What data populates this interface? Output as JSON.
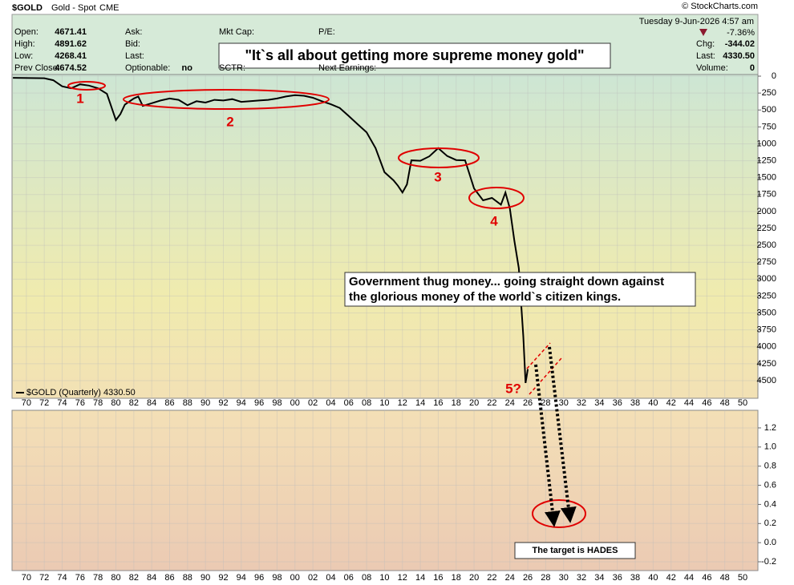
{
  "header": {
    "symbol": "$GOLD",
    "name": "Gold - Spot",
    "exchange": "CME",
    "date": "Tuesday  9-Jun-2026  4:57 am",
    "copyright": "© StockCharts.com",
    "fields_left": [
      [
        "Open:",
        "4671.41"
      ],
      [
        "High:",
        "4891.62"
      ],
      [
        "Low:",
        "4268.41"
      ],
      [
        "Prev Close:",
        "4674.52"
      ]
    ],
    "fields_mid": [
      [
        "Ask:",
        ""
      ],
      [
        "Bid:",
        ""
      ],
      [
        "Last:",
        ""
      ],
      [
        "Optionable:",
        "no"
      ]
    ],
    "fields_3": [
      "Mkt Cap:",
      "SCTR:"
    ],
    "fields_4": [
      "P/E:",
      "Next Earnings:"
    ],
    "change_pct": "-7.36%",
    "fields_right": [
      [
        "Chg:",
        "-344.02"
      ],
      [
        "Last:",
        "4330.50"
      ],
      [
        "Volume:",
        "0"
      ]
    ]
  },
  "annotations": {
    "title": "\"It`s all about getting more supreme money gold\"",
    "government": [
      "Government thug money... going straight down against",
      "the glorious money of the world`s citizen kings."
    ],
    "target": "The target is HADES",
    "labels": [
      "1",
      "2",
      "3",
      "4",
      "5?"
    ]
  },
  "chart_data": [
    {
      "type": "line",
      "y_inverted": true,
      "grid": true,
      "x": [
        1968.5,
        1972,
        1973,
        1974,
        1975,
        1976,
        1977,
        1978,
        1979,
        1980,
        1980.5,
        1981,
        1982,
        1982.5,
        1983,
        1984,
        1985,
        1986,
        1987,
        1988,
        1989,
        1990,
        1991,
        1992,
        1993,
        1994,
        1995,
        1996,
        1997,
        1998,
        1999,
        2000,
        2001,
        2002,
        2003,
        2004,
        2005,
        2006,
        2007,
        2008,
        2009,
        2010,
        2011,
        2011.5,
        2012,
        2012.5,
        2013,
        2014,
        2015,
        2016,
        2017,
        2018,
        2019,
        2020,
        2021,
        2022,
        2023,
        2023.5,
        2024,
        2024.5,
        2025,
        2025.5,
        2025.75,
        2026
      ],
      "series": [
        {
          "name": "$GOLD (Quarterly) 4330.50",
          "color": "#000000",
          "values": [
            25,
            30,
            60,
            150,
            180,
            120,
            140,
            180,
            260,
            650,
            560,
            420,
            330,
            300,
            440,
            400,
            360,
            330,
            350,
            430,
            370,
            390,
            350,
            360,
            340,
            380,
            370,
            360,
            350,
            330,
            300,
            280,
            290,
            320,
            370,
            415,
            470,
            590,
            710,
            830,
            1065,
            1420,
            1540,
            1620,
            1720,
            1600,
            1245,
            1250,
            1185,
            1065,
            1180,
            1240,
            1245,
            1660,
            1835,
            1800,
            1900,
            1720,
            1955,
            2430,
            2840,
            3850,
            4535,
            4330
          ]
        }
      ],
      "xlim": [
        1968.4,
        2051.7
      ],
      "xticks": [
        {
          "value": 1970,
          "label": "70"
        },
        {
          "value": 1972,
          "label": "72"
        },
        {
          "value": 1974,
          "label": "74"
        },
        {
          "value": 1976,
          "label": "76"
        },
        {
          "value": 1978,
          "label": "78"
        },
        {
          "value": 1980,
          "label": "80"
        },
        {
          "value": 1982,
          "label": "82"
        },
        {
          "value": 1984,
          "label": "84"
        },
        {
          "value": 1986,
          "label": "86"
        },
        {
          "value": 1988,
          "label": "88"
        },
        {
          "value": 1990,
          "label": "90"
        },
        {
          "value": 1992,
          "label": "92"
        },
        {
          "value": 1994,
          "label": "94"
        },
        {
          "value": 1996,
          "label": "96"
        },
        {
          "value": 1998,
          "label": "98"
        },
        {
          "value": 2000,
          "label": "00"
        },
        {
          "value": 2002,
          "label": "02"
        },
        {
          "value": 2004,
          "label": "04"
        },
        {
          "value": 2006,
          "label": "06"
        },
        {
          "value": 2008,
          "label": "08"
        },
        {
          "value": 2010,
          "label": "10"
        },
        {
          "value": 2012,
          "label": "12"
        },
        {
          "value": 2014,
          "label": "14"
        },
        {
          "value": 2016,
          "label": "16"
        },
        {
          "value": 2018,
          "label": "18"
        },
        {
          "value": 2020,
          "label": "20"
        },
        {
          "value": 2022,
          "label": "22"
        },
        {
          "value": 2024,
          "label": "24"
        },
        {
          "value": 2026,
          "label": "26"
        },
        {
          "value": 2028,
          "label": "28"
        },
        {
          "value": 2030,
          "label": "30"
        },
        {
          "value": 2032,
          "label": "32"
        },
        {
          "value": 2034,
          "label": "34"
        },
        {
          "value": 2036,
          "label": "36"
        },
        {
          "value": 2038,
          "label": "38"
        },
        {
          "value": 2040,
          "label": "40"
        },
        {
          "value": 2042,
          "label": "42"
        },
        {
          "value": 2044,
          "label": "44"
        },
        {
          "value": 2046,
          "label": "46"
        },
        {
          "value": 2048,
          "label": "48"
        },
        {
          "value": 2050,
          "label": "50"
        }
      ],
      "ylim": [
        -24,
        4761
      ],
      "yticks": [
        0,
        250,
        500,
        750,
        1000,
        1250,
        1500,
        1750,
        2000,
        2250,
        2500,
        2750,
        3000,
        3250,
        3500,
        3750,
        4000,
        4250,
        4500
      ]
    },
    {
      "type": "line",
      "grid": true,
      "ylim": [
        -0.292,
        1.384
      ],
      "yticks": [
        -0.2,
        {
          "value": 0,
          "label": "0.0"
        },
        0.2,
        0.4,
        0.6,
        0.8,
        {
          "value": 1,
          "label": "1.0"
        },
        1.2
      ]
    }
  ]
}
